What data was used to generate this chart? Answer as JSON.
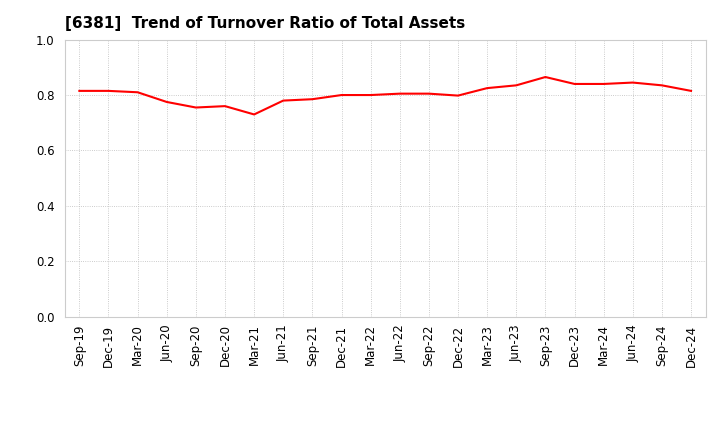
{
  "title": "[6381]  Trend of Turnover Ratio of Total Assets",
  "x_labels": [
    "Sep-19",
    "Dec-19",
    "Mar-20",
    "Jun-20",
    "Sep-20",
    "Dec-20",
    "Mar-21",
    "Jun-21",
    "Sep-21",
    "Dec-21",
    "Mar-22",
    "Jun-22",
    "Sep-22",
    "Dec-22",
    "Mar-23",
    "Jun-23",
    "Sep-23",
    "Dec-23",
    "Mar-24",
    "Jun-24",
    "Sep-24",
    "Dec-24"
  ],
  "values": [
    0.815,
    0.815,
    0.81,
    0.775,
    0.755,
    0.76,
    0.73,
    0.78,
    0.785,
    0.8,
    0.8,
    0.805,
    0.805,
    0.798,
    0.825,
    0.835,
    0.865,
    0.84,
    0.84,
    0.845,
    0.835,
    0.815
  ],
  "line_color": "#FF0000",
  "line_width": 1.5,
  "ylim": [
    0.0,
    1.0
  ],
  "yticks": [
    0.0,
    0.2,
    0.4,
    0.6,
    0.8,
    1.0
  ],
  "background_color": "#ffffff",
  "grid_color": "#bbbbbb",
  "title_fontsize": 11,
  "tick_fontsize": 8.5
}
